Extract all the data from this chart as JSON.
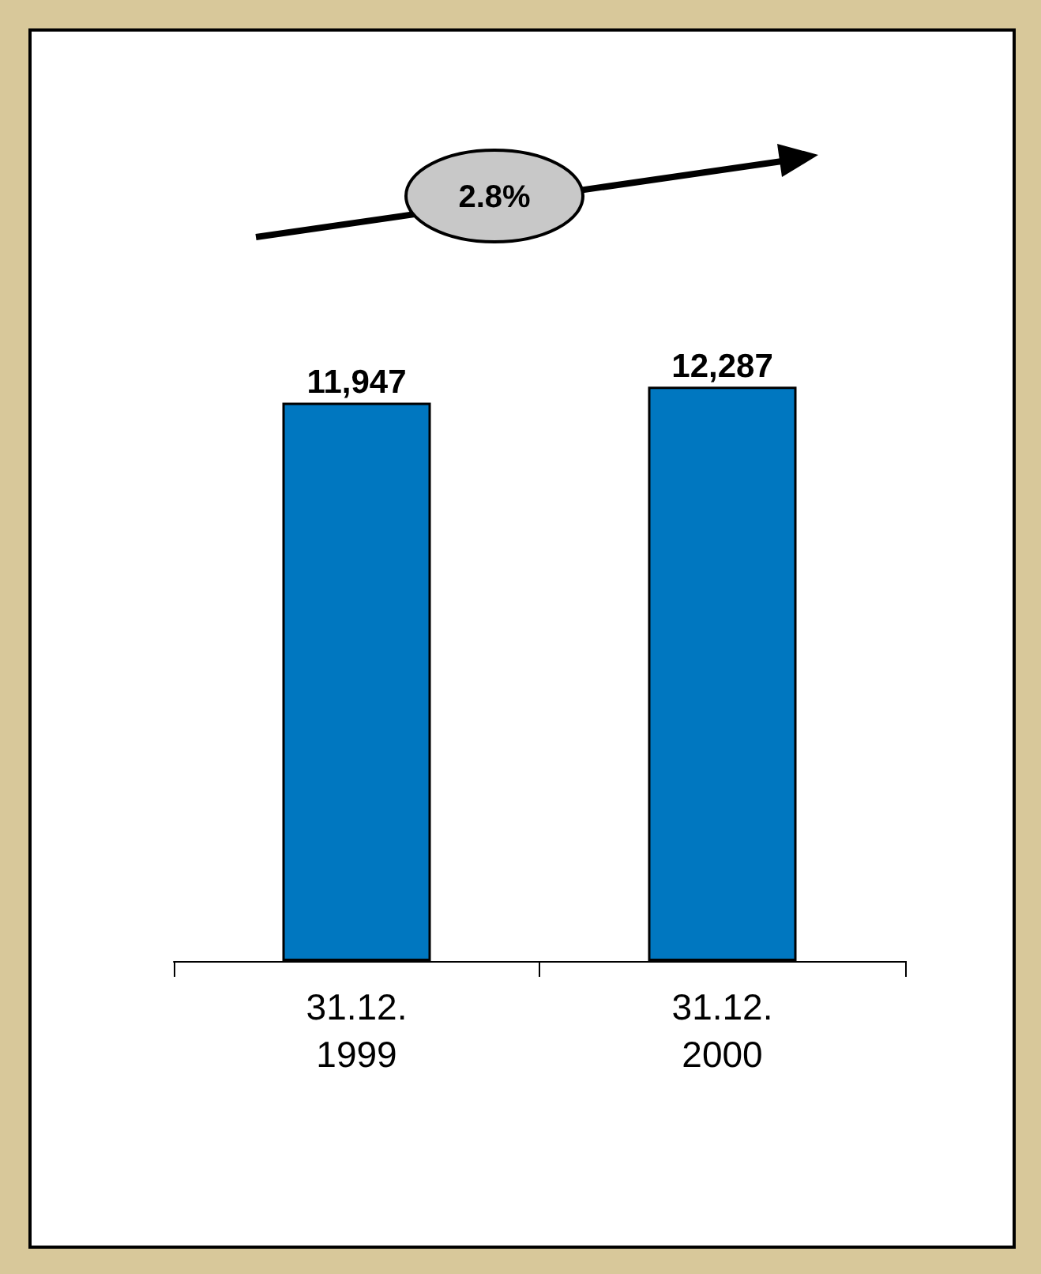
{
  "chart_data": {
    "type": "bar",
    "categories": [
      "31.12.\n1999",
      "31.12.\n2000"
    ],
    "values": [
      11947,
      12287
    ],
    "color": "#0077c0",
    "value_labels": [
      "11,947",
      "12,287"
    ],
    "annotations": [
      "2.8%"
    ]
  }
}
